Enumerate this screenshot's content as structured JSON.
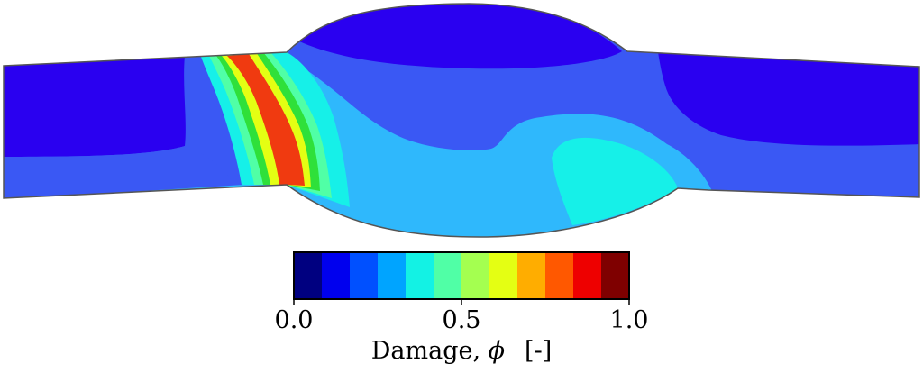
{
  "figure": {
    "quantity": "Damage, ",
    "symbol": "ϕ",
    "unit": "[-]"
  },
  "colorbar": {
    "min_label": "0.0",
    "mid_label": "0.5",
    "max_label": "1.0",
    "range": [
      0.0,
      1.0
    ],
    "levels": 12,
    "colors": [
      "#000080",
      "#0000ee",
      "#0050ff",
      "#00a4ff",
      "#13f2e4",
      "#50ffa6",
      "#a4ff50",
      "#e4ff13",
      "#ffad00",
      "#ff5800",
      "#ee0000",
      "#7f0000"
    ]
  },
  "specimen": {
    "colors": {
      "lowest_damage": "#2a00f0",
      "low_damage": "#3a58f4",
      "mid_low_damage": "#2fb8fc",
      "mid_damage": "#16f0e8",
      "mid_high_damage": "#50ffa6",
      "high_damage": "#2fe03a",
      "very_high_damage": "#e4ff13",
      "peak_damage": "#f03a10"
    }
  }
}
